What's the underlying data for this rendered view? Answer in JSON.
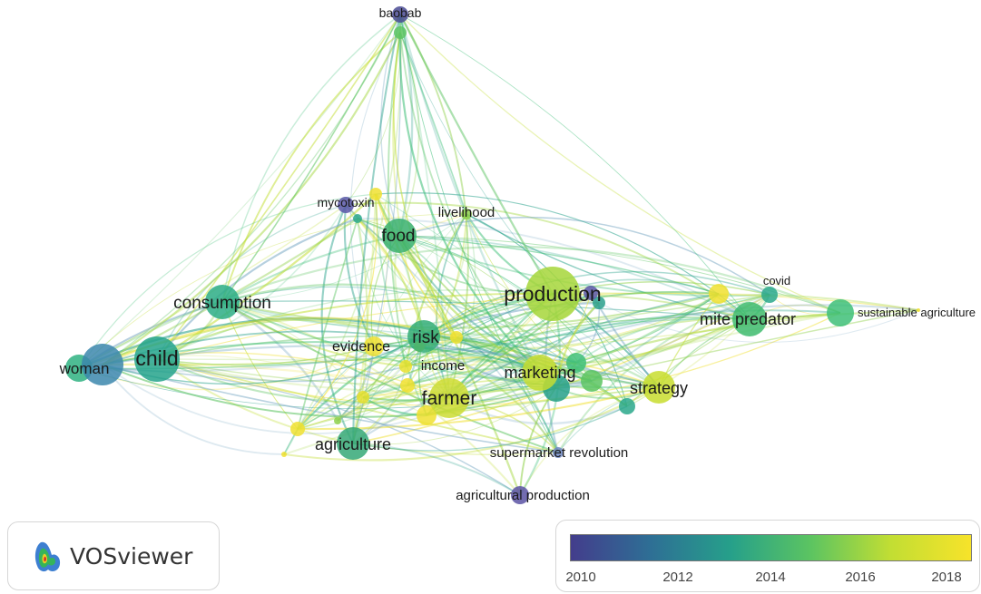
{
  "app": {
    "name": "VOSviewer",
    "logo_icon": "vosviewer-logo-icon"
  },
  "legend": {
    "ticks": [
      "2010",
      "2012",
      "2014",
      "2016",
      "2018"
    ],
    "gradient": [
      "#433d8c",
      "#2e6f95",
      "#26a08a",
      "#5cc461",
      "#c2de33",
      "#f7e32a"
    ]
  },
  "network": {
    "nodes": [
      {
        "label": "baobab"
      },
      {
        "label": "mycotoxin"
      },
      {
        "label": "livelihood"
      },
      {
        "label": "food"
      },
      {
        "label": "consumption"
      },
      {
        "label": "production"
      },
      {
        "label": "covid"
      },
      {
        "label": "sustainable agriculture"
      },
      {
        "label": "mite predator"
      },
      {
        "label": "child"
      },
      {
        "label": "woman"
      },
      {
        "label": "risk"
      },
      {
        "label": "evidence"
      },
      {
        "label": "income"
      },
      {
        "label": "marketing"
      },
      {
        "label": "farmer"
      },
      {
        "label": "strategy"
      },
      {
        "label": "agriculture"
      },
      {
        "label": "supermarket revolution"
      },
      {
        "label": "agricultural production"
      }
    ]
  }
}
